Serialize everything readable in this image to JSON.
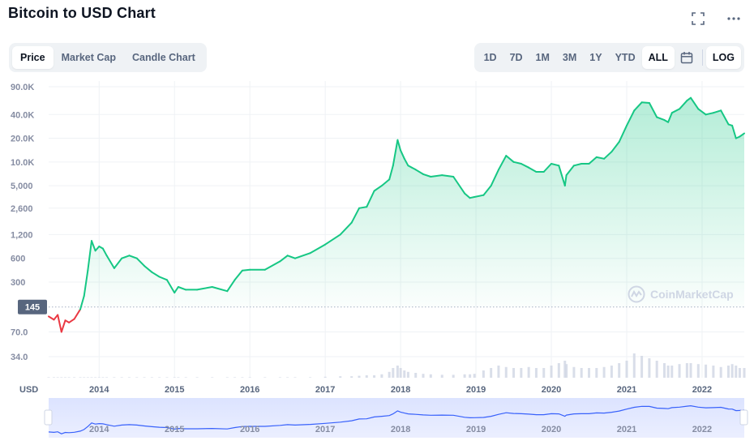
{
  "header": {
    "title": "Bitcoin to USD Chart",
    "fullscreen_icon": "expand-icon",
    "more_icon": "more-horizontal-icon"
  },
  "tabs": [
    {
      "label": "Price",
      "active": true
    },
    {
      "label": "Market Cap",
      "active": false
    },
    {
      "label": "Candle Chart",
      "active": false
    }
  ],
  "ranges": [
    {
      "label": "1D",
      "active": false
    },
    {
      "label": "7D",
      "active": false
    },
    {
      "label": "1M",
      "active": false
    },
    {
      "label": "3M",
      "active": false
    },
    {
      "label": "1Y",
      "active": false
    },
    {
      "label": "YTD",
      "active": false
    },
    {
      "label": "ALL",
      "active": true
    }
  ],
  "calendar_icon": "calendar-icon",
  "log_label": "LOG",
  "colors": {
    "up": "#16c784",
    "down": "#ea3943",
    "navigator_line": "#3861fb"
  },
  "watermark": "CoinMarketCap",
  "chart_data": {
    "type": "area",
    "scale": "log",
    "xlabel": "",
    "ylabel": "USD",
    "y_ticks": [
      "90.0K",
      "40.0K",
      "20.0K",
      "10.0K",
      "5,000",
      "2,600",
      "1,200",
      "600",
      "300",
      "70.0",
      "34.0"
    ],
    "x_ticks": [
      "2014",
      "2015",
      "2016",
      "2017",
      "2018",
      "2019",
      "2020",
      "2021",
      "2022"
    ],
    "navigator_ticks": [
      "2014",
      "2015",
      "2016",
      "2017",
      "2018",
      "2019",
      "2020",
      "2021",
      "2022"
    ],
    "reference_line": {
      "value": 145,
      "label": "145"
    },
    "grid": true,
    "series": [
      {
        "color_rule": "red below reference, green above",
        "x": [
          2013.33,
          2013.4,
          2013.45,
          2013.5,
          2013.55,
          2013.6,
          2013.67,
          2013.75,
          2013.8,
          2013.85,
          2013.9,
          2013.95,
          2014.0,
          2014.05,
          2014.1,
          2014.2,
          2014.3,
          2014.4,
          2014.5,
          2014.6,
          2014.7,
          2014.8,
          2014.9,
          2015.0,
          2015.05,
          2015.15,
          2015.3,
          2015.5,
          2015.7,
          2015.8,
          2015.9,
          2016.0,
          2016.2,
          2016.4,
          2016.5,
          2016.6,
          2016.8,
          2017.0,
          2017.2,
          2017.35,
          2017.45,
          2017.55,
          2017.65,
          2017.75,
          2017.85,
          2017.9,
          2017.96,
          2018.0,
          2018.05,
          2018.1,
          2018.2,
          2018.3,
          2018.4,
          2018.55,
          2018.7,
          2018.85,
          2018.92,
          2018.98,
          2019.1,
          2019.2,
          2019.3,
          2019.4,
          2019.5,
          2019.6,
          2019.7,
          2019.8,
          2019.9,
          2020.0,
          2020.1,
          2020.18,
          2020.2,
          2020.3,
          2020.4,
          2020.5,
          2020.6,
          2020.7,
          2020.8,
          2020.9,
          2021.0,
          2021.1,
          2021.2,
          2021.3,
          2021.4,
          2021.5,
          2021.55,
          2021.6,
          2021.7,
          2021.8,
          2021.85,
          2021.95,
          2022.05,
          2022.15,
          2022.25,
          2022.35,
          2022.4,
          2022.45,
          2022.5,
          2022.56
        ],
        "y": [
          110,
          100,
          115,
          70,
          98,
          92,
          102,
          135,
          200,
          420,
          1000,
          750,
          850,
          800,
          650,
          450,
          600,
          650,
          600,
          480,
          400,
          350,
          320,
          220,
          260,
          240,
          240,
          260,
          230,
          320,
          420,
          430,
          430,
          550,
          650,
          600,
          700,
          900,
          1200,
          1700,
          2600,
          2700,
          4300,
          5000,
          6000,
          9000,
          19000,
          14000,
          11000,
          9000,
          8000,
          7000,
          6500,
          6800,
          6500,
          4000,
          3500,
          3600,
          3800,
          5000,
          8000,
          12000,
          10000,
          9500,
          8500,
          7500,
          7500,
          9500,
          9000,
          5000,
          6800,
          9000,
          9500,
          9500,
          11500,
          11000,
          13500,
          18000,
          29000,
          45000,
          57000,
          56000,
          37000,
          34000,
          32000,
          42000,
          47000,
          60000,
          65000,
          47000,
          40000,
          42000,
          45000,
          30000,
          29000,
          20000,
          21000,
          23000
        ],
        "volume": [
          0.01,
          0.01,
          0.01,
          0.01,
          0.01,
          0.01,
          0.01,
          0.01,
          0.01,
          0.01,
          0.01,
          0.01,
          0.01,
          0.01,
          0.01,
          0.01,
          0.01,
          0.01,
          0.01,
          0.01,
          0.01,
          0.01,
          0.01,
          0.01,
          0.01,
          0.01,
          0.01,
          0.01,
          0.01,
          0.01,
          0.01,
          0.01,
          0.01,
          0.01,
          0.01,
          0.01,
          0.01,
          0.02,
          0.03,
          0.03,
          0.04,
          0.05,
          0.05,
          0.07,
          0.12,
          0.2,
          0.25,
          0.2,
          0.15,
          0.12,
          0.1,
          0.08,
          0.07,
          0.06,
          0.06,
          0.07,
          0.07,
          0.08,
          0.15,
          0.2,
          0.25,
          0.22,
          0.2,
          0.2,
          0.22,
          0.2,
          0.2,
          0.25,
          0.3,
          0.35,
          0.28,
          0.22,
          0.2,
          0.2,
          0.2,
          0.22,
          0.25,
          0.3,
          0.35,
          0.5,
          0.45,
          0.4,
          0.35,
          0.3,
          0.25,
          0.25,
          0.28,
          0.3,
          0.3,
          0.28,
          0.27,
          0.25,
          0.22,
          0.25,
          0.28,
          0.25,
          0.2,
          0.2
        ]
      }
    ]
  }
}
